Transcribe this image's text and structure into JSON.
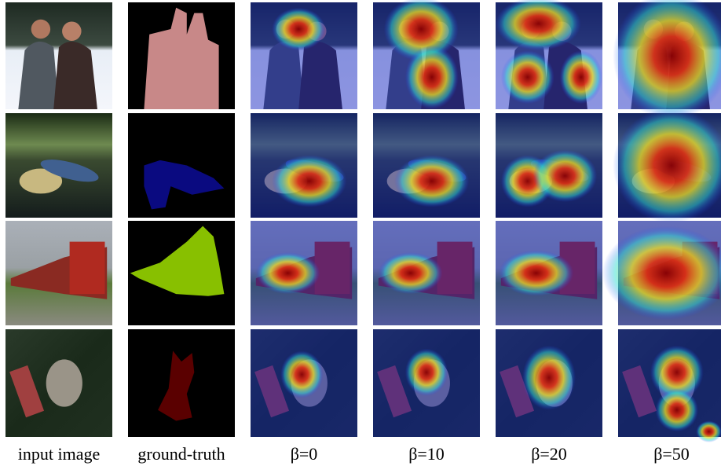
{
  "columns": [
    "input image",
    "ground-truth",
    "β=0",
    "β=10",
    "β=20",
    "β=50"
  ]
}
